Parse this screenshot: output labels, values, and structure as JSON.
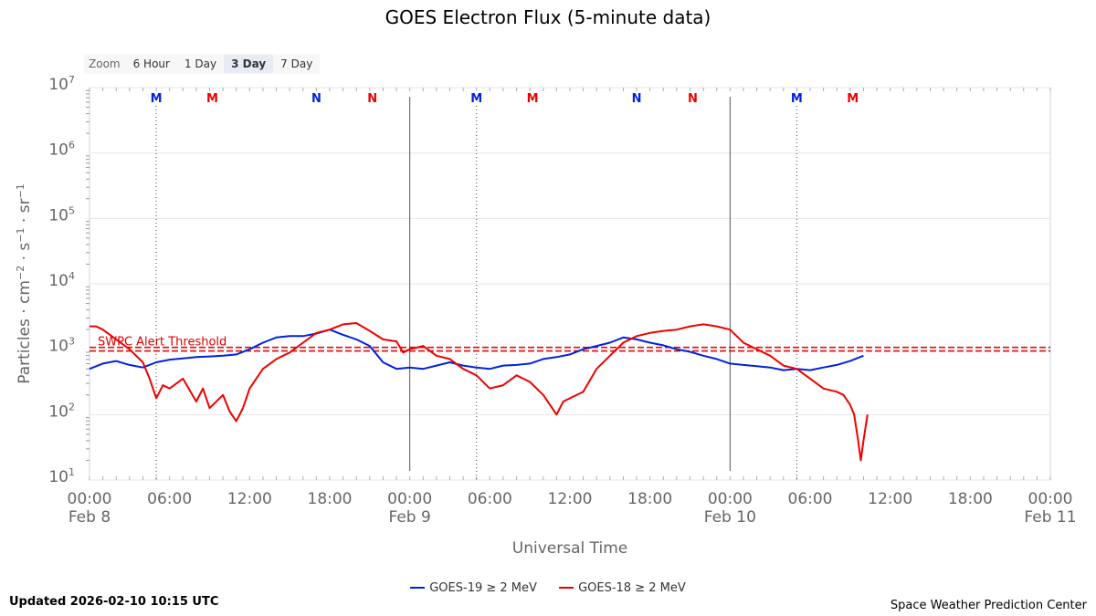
{
  "chart_data": {
    "type": "line",
    "title": "GOES Electron Flux (5-minute data)",
    "xlabel": "Universal Time",
    "ylabel_parts": [
      "Particles",
      "cm",
      "−2",
      "s",
      "−1",
      "sr",
      "−1"
    ],
    "y_scale": "log",
    "ylim": [
      1,
      7
    ],
    "y_ticks": [
      {
        "base": "10",
        "exp": "1"
      },
      {
        "base": "10",
        "exp": "2"
      },
      {
        "base": "10",
        "exp": "3"
      },
      {
        "base": "10",
        "exp": "4"
      },
      {
        "base": "10",
        "exp": "5"
      },
      {
        "base": "10",
        "exp": "6"
      },
      {
        "base": "10",
        "exp": "7"
      }
    ],
    "xlim_hours": [
      0,
      72
    ],
    "x_ticks": [
      {
        "t": 0,
        "label": "00:00",
        "date": "Feb 8"
      },
      {
        "t": 6,
        "label": "06:00"
      },
      {
        "t": 12,
        "label": "12:00"
      },
      {
        "t": 18,
        "label": "18:00"
      },
      {
        "t": 24,
        "label": "00:00",
        "date": "Feb 9"
      },
      {
        "t": 30,
        "label": "06:00"
      },
      {
        "t": 36,
        "label": "12:00"
      },
      {
        "t": 42,
        "label": "18:00"
      },
      {
        "t": 48,
        "label": "00:00",
        "date": "Feb 10"
      },
      {
        "t": 54,
        "label": "06:00"
      },
      {
        "t": 60,
        "label": "12:00"
      },
      {
        "t": 66,
        "label": "18:00"
      },
      {
        "t": 72,
        "label": "00:00",
        "date": "Feb 11"
      }
    ],
    "day_lines": [
      24,
      48
    ],
    "threshold": {
      "label": "SWPC Alert Threshold",
      "value": 3,
      "color": "#dd0000"
    },
    "markers": [
      {
        "t": 5.0,
        "label": "M",
        "color": "#0022dd",
        "dotted": true
      },
      {
        "t": 9.2,
        "label": "M",
        "color": "#ee0000",
        "dotted": false
      },
      {
        "t": 17.0,
        "label": "N",
        "color": "#0022dd",
        "dotted": false
      },
      {
        "t": 21.2,
        "label": "N",
        "color": "#ee0000",
        "dotted": false
      },
      {
        "t": 29.0,
        "label": "M",
        "color": "#0022dd",
        "dotted": true
      },
      {
        "t": 33.2,
        "label": "M",
        "color": "#ee0000",
        "dotted": false
      },
      {
        "t": 41.0,
        "label": "N",
        "color": "#0022dd",
        "dotted": false
      },
      {
        "t": 45.2,
        "label": "N",
        "color": "#ee0000",
        "dotted": false
      },
      {
        "t": 53.0,
        "label": "M",
        "color": "#0022dd",
        "dotted": true
      },
      {
        "t": 57.2,
        "label": "M",
        "color": "#ee0000",
        "dotted": false
      }
    ],
    "series": [
      {
        "name": "GOES-19 ≥ 2 MeV",
        "color": "#0022dd",
        "points": [
          [
            0,
            2.7
          ],
          [
            1,
            2.78
          ],
          [
            2,
            2.82
          ],
          [
            3,
            2.76
          ],
          [
            4,
            2.72
          ],
          [
            5,
            2.8
          ],
          [
            6,
            2.84
          ],
          [
            7,
            2.86
          ],
          [
            8,
            2.88
          ],
          [
            9,
            2.89
          ],
          [
            10,
            2.9
          ],
          [
            11,
            2.92
          ],
          [
            12,
            3.0
          ],
          [
            13,
            3.1
          ],
          [
            14,
            3.18
          ],
          [
            15,
            3.2
          ],
          [
            16,
            3.2
          ],
          [
            17,
            3.24
          ],
          [
            18,
            3.3
          ],
          [
            19,
            3.22
          ],
          [
            20,
            3.15
          ],
          [
            21,
            3.05
          ],
          [
            22,
            2.8
          ],
          [
            23,
            2.7
          ],
          [
            24,
            2.72
          ],
          [
            25,
            2.7
          ],
          [
            26,
            2.75
          ],
          [
            27,
            2.8
          ],
          [
            28,
            2.75
          ],
          [
            29,
            2.72
          ],
          [
            30,
            2.7
          ],
          [
            31,
            2.75
          ],
          [
            32,
            2.76
          ],
          [
            33,
            2.78
          ],
          [
            34,
            2.85
          ],
          [
            35,
            2.88
          ],
          [
            36,
            2.92
          ],
          [
            37,
            3.0
          ],
          [
            38,
            3.05
          ],
          [
            39,
            3.1
          ],
          [
            40,
            3.18
          ],
          [
            41,
            3.15
          ],
          [
            42,
            3.1
          ],
          [
            43,
            3.06
          ],
          [
            44,
            3.0
          ],
          [
            45,
            2.96
          ],
          [
            46,
            2.9
          ],
          [
            47,
            2.85
          ],
          [
            48,
            2.78
          ],
          [
            49,
            2.76
          ],
          [
            50,
            2.74
          ],
          [
            51,
            2.72
          ],
          [
            52,
            2.68
          ],
          [
            53,
            2.7
          ],
          [
            54,
            2.68
          ],
          [
            55,
            2.72
          ],
          [
            56,
            2.76
          ],
          [
            57,
            2.82
          ],
          [
            58,
            2.9
          ]
        ]
      },
      {
        "name": "GOES-18 ≥ 2 MeV",
        "color": "#ee0000",
        "points": [
          [
            0,
            3.35
          ],
          [
            0.5,
            3.35
          ],
          [
            1,
            3.3
          ],
          [
            2,
            3.15
          ],
          [
            3,
            3.0
          ],
          [
            4,
            2.8
          ],
          [
            4.5,
            2.55
          ],
          [
            5,
            2.25
          ],
          [
            5.5,
            2.45
          ],
          [
            6,
            2.4
          ],
          [
            7,
            2.55
          ],
          [
            8,
            2.2
          ],
          [
            8.5,
            2.4
          ],
          [
            9,
            2.1
          ],
          [
            10,
            2.3
          ],
          [
            10.5,
            2.05
          ],
          [
            11,
            1.9
          ],
          [
            11.5,
            2.1
          ],
          [
            12,
            2.4
          ],
          [
            13,
            2.7
          ],
          [
            14,
            2.85
          ],
          [
            15,
            2.95
          ],
          [
            16,
            3.1
          ],
          [
            17,
            3.25
          ],
          [
            18,
            3.3
          ],
          [
            19,
            3.38
          ],
          [
            20,
            3.4
          ],
          [
            21,
            3.28
          ],
          [
            22,
            3.15
          ],
          [
            23,
            3.12
          ],
          [
            23.5,
            2.95
          ],
          [
            24,
            3.0
          ],
          [
            25,
            3.05
          ],
          [
            26,
            2.9
          ],
          [
            27,
            2.85
          ],
          [
            28,
            2.7
          ],
          [
            29,
            2.6
          ],
          [
            30,
            2.4
          ],
          [
            31,
            2.45
          ],
          [
            32,
            2.6
          ],
          [
            33,
            2.5
          ],
          [
            34,
            2.3
          ],
          [
            35,
            2.0
          ],
          [
            35.5,
            2.2
          ],
          [
            36,
            2.25
          ],
          [
            37,
            2.35
          ],
          [
            38,
            2.7
          ],
          [
            39,
            2.9
          ],
          [
            40,
            3.1
          ],
          [
            41,
            3.2
          ],
          [
            42,
            3.25
          ],
          [
            43,
            3.28
          ],
          [
            44,
            3.3
          ],
          [
            45,
            3.35
          ],
          [
            46,
            3.38
          ],
          [
            47,
            3.35
          ],
          [
            48,
            3.3
          ],
          [
            48.5,
            3.2
          ],
          [
            49,
            3.1
          ],
          [
            50,
            3.0
          ],
          [
            51,
            2.9
          ],
          [
            52,
            2.75
          ],
          [
            53,
            2.7
          ],
          [
            54,
            2.55
          ],
          [
            55,
            2.4
          ],
          [
            56,
            2.35
          ],
          [
            56.5,
            2.3
          ],
          [
            57,
            2.15
          ],
          [
            57.3,
            2.0
          ],
          [
            57.6,
            1.6
          ],
          [
            57.8,
            1.3
          ],
          [
            58,
            1.6
          ],
          [
            58.3,
            2.0
          ]
        ]
      }
    ]
  },
  "zoom": {
    "label": "Zoom",
    "buttons": [
      "6 Hour",
      "1 Day",
      "3 Day",
      "7 Day"
    ],
    "active": "3 Day"
  },
  "updated": "Updated 2026-02-10 10:15 UTC",
  "credit": "Space Weather Prediction Center",
  "colors": {
    "blue": "#0022dd",
    "red": "#ee0000",
    "grid": "#e6e6e6"
  }
}
